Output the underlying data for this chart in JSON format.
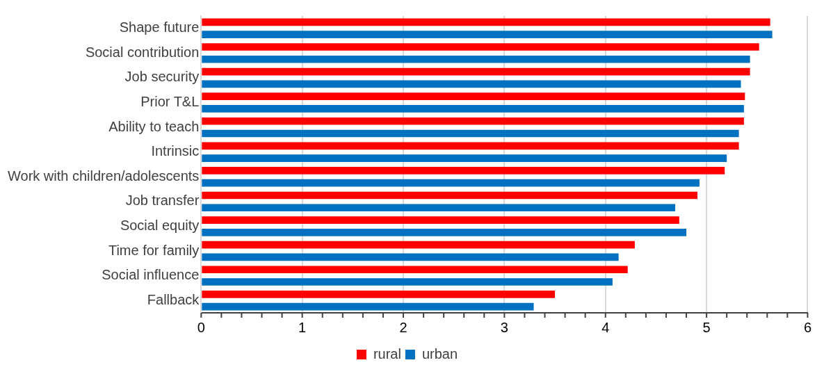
{
  "chart_data": {
    "type": "bar",
    "orientation": "horizontal",
    "categories": [
      "Shape future",
      "Social contribution",
      "Job security",
      "Prior T&L",
      "Ability to teach",
      "Intrinsic",
      "Work with children/adolescents",
      "Job transfer",
      "Social equity",
      "Time for family",
      "Social influence",
      "Fallback"
    ],
    "series": [
      {
        "name": "rural",
        "color": "#ff0000",
        "values": [
          5.63,
          5.52,
          5.43,
          5.38,
          5.37,
          5.32,
          5.18,
          4.91,
          4.73,
          4.29,
          4.22,
          3.5
        ]
      },
      {
        "name": "urban",
        "color": "#0070c0",
        "values": [
          5.65,
          5.43,
          5.34,
          5.37,
          5.32,
          5.2,
          4.93,
          4.69,
          4.8,
          4.13,
          4.07,
          3.29
        ]
      }
    ],
    "xlim": [
      0,
      6
    ],
    "xticks": [
      0,
      {
        "value": 0.2,
        "label": null
      },
      {
        "value": 0.4,
        "label": null
      },
      {
        "value": 0.6,
        "label": null
      },
      {
        "value": 0.8,
        "label": null
      },
      1,
      {
        "value": 1.2,
        "label": null
      },
      {
        "value": 1.4,
        "label": null
      },
      {
        "value": 1.6,
        "label": null
      },
      {
        "value": 1.8,
        "label": null
      },
      2,
      {
        "value": 2.2,
        "label": null
      },
      {
        "value": 2.4,
        "label": null
      },
      {
        "value": 2.6,
        "label": null
      },
      {
        "value": 2.8,
        "label": null
      },
      3,
      {
        "value": 3.2,
        "label": null
      },
      {
        "value": 3.4,
        "label": null
      },
      {
        "value": 3.6,
        "label": null
      },
      {
        "value": 3.8,
        "label": null
      },
      4,
      {
        "value": 4.2,
        "label": null
      },
      {
        "value": 4.4,
        "label": null
      },
      {
        "value": 4.6,
        "label": null
      },
      {
        "value": 4.8,
        "label": null
      },
      5,
      {
        "value": 5.2,
        "label": null
      },
      {
        "value": 5.4,
        "label": null
      },
      {
        "value": 5.6,
        "label": null
      },
      {
        "value": 5.8,
        "label": null
      },
      6
    ],
    "grid": "x",
    "legend": "bottom"
  }
}
